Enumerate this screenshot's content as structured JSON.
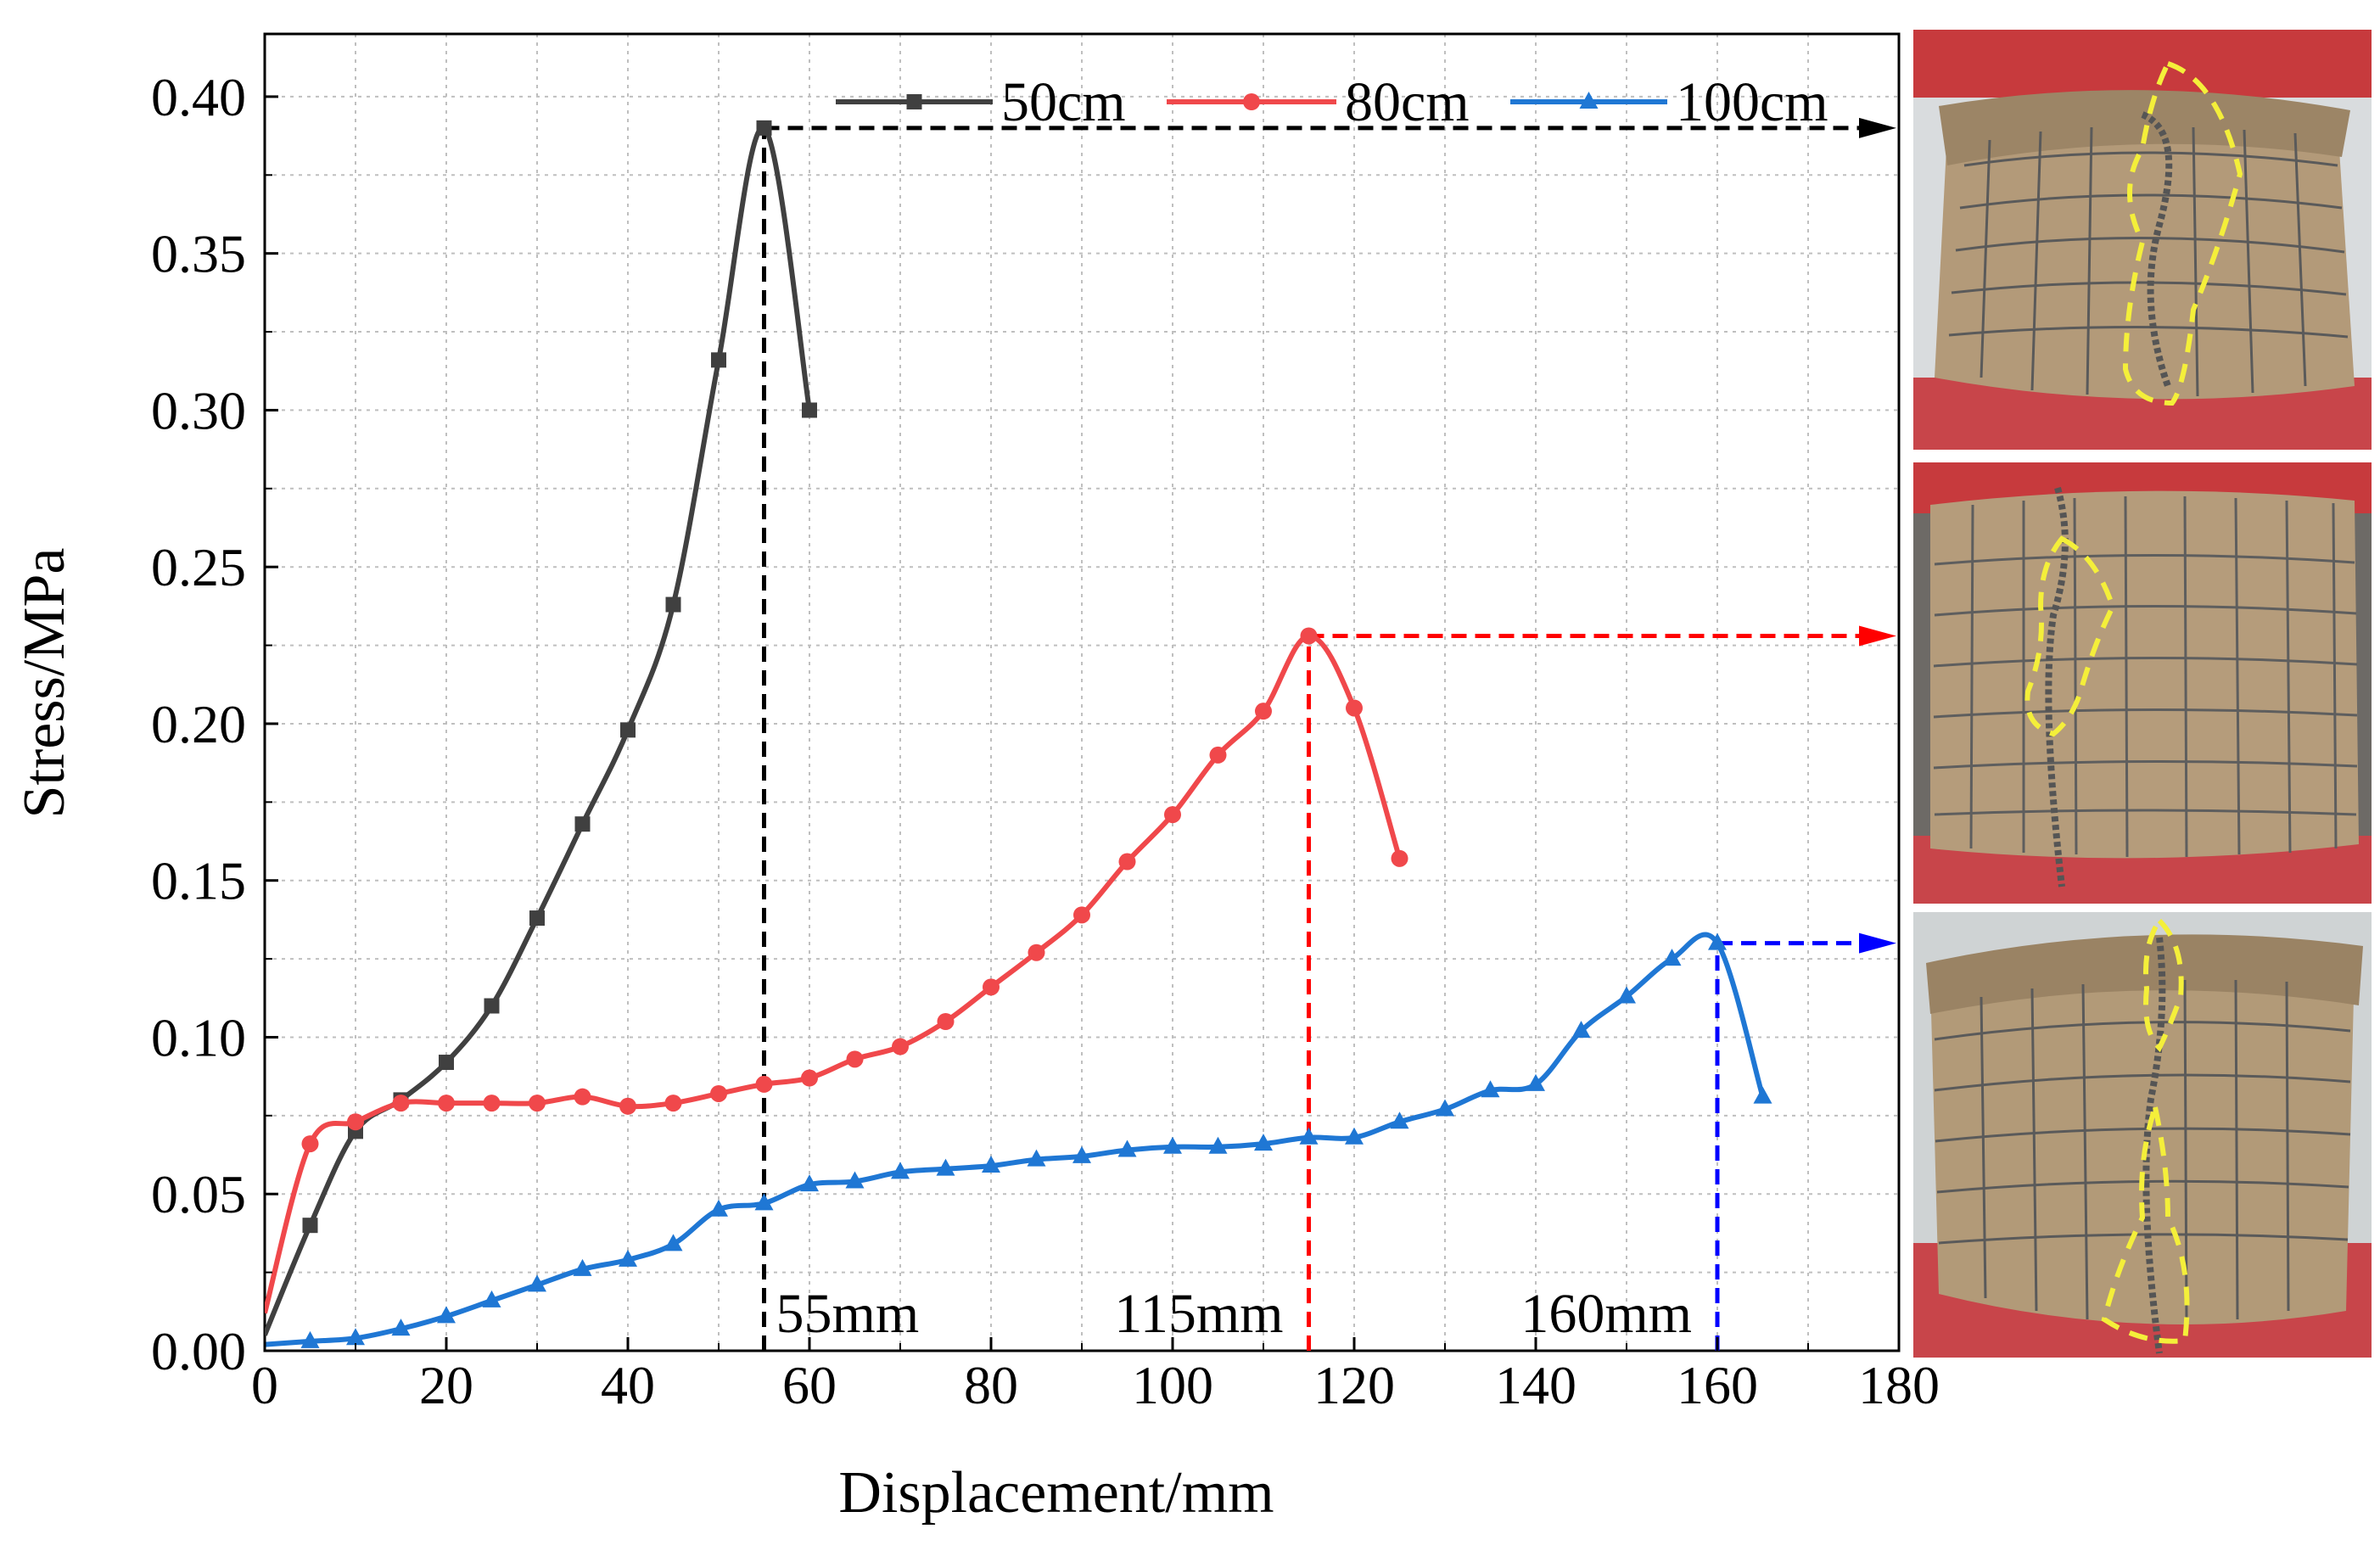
{
  "chart_data": {
    "type": "line",
    "title": "",
    "xlabel": "Displacement/mm",
    "ylabel": "Stress/MPa",
    "xlim": [
      0,
      180
    ],
    "ylim": [
      0,
      0.42
    ],
    "xticks": [
      0,
      20,
      40,
      60,
      80,
      100,
      120,
      140,
      160,
      180
    ],
    "yticks": [
      0.0,
      0.05,
      0.1,
      0.15,
      0.2,
      0.25,
      0.3,
      0.35,
      0.4
    ],
    "xtick_labels": [
      "0",
      "20",
      "40",
      "60",
      "80",
      "100",
      "120",
      "140",
      "160",
      "180"
    ],
    "ytick_labels": [
      "0.00",
      "0.05",
      "0.10",
      "0.15",
      "0.20",
      "0.25",
      "0.30",
      "0.35",
      "0.40"
    ],
    "grid": true,
    "legend_position": "top-right",
    "series": [
      {
        "name": "50cm",
        "color": "#404040",
        "marker": "square",
        "x": [
          0,
          5,
          10,
          15,
          20,
          25,
          30,
          35,
          40,
          45,
          50,
          55,
          60
        ],
        "y": [
          0.005,
          0.04,
          0.07,
          0.08,
          0.092,
          0.11,
          0.138,
          0.168,
          0.198,
          0.238,
          0.316,
          0.39,
          0.3
        ]
      },
      {
        "name": "80cm",
        "color": "#f0484b",
        "marker": "circle",
        "x": [
          0,
          5,
          10,
          15,
          20,
          25,
          30,
          35,
          40,
          45,
          50,
          55,
          60,
          65,
          70,
          75,
          80,
          85,
          90,
          95,
          100,
          105,
          110,
          115,
          120,
          125
        ],
        "y": [
          0.012,
          0.066,
          0.073,
          0.079,
          0.079,
          0.079,
          0.079,
          0.081,
          0.078,
          0.079,
          0.082,
          0.085,
          0.087,
          0.093,
          0.097,
          0.105,
          0.116,
          0.127,
          0.139,
          0.156,
          0.171,
          0.19,
          0.204,
          0.228,
          0.205,
          0.157
        ]
      },
      {
        "name": "100cm",
        "color": "#1f77d4",
        "marker": "triangle",
        "x": [
          0,
          5,
          10,
          15,
          20,
          25,
          30,
          35,
          40,
          45,
          50,
          55,
          60,
          65,
          70,
          75,
          80,
          85,
          90,
          95,
          100,
          105,
          110,
          115,
          120,
          125,
          130,
          135,
          140,
          145,
          150,
          155,
          160,
          165
        ],
        "y": [
          0.002,
          0.003,
          0.004,
          0.007,
          0.011,
          0.016,
          0.021,
          0.026,
          0.029,
          0.034,
          0.045,
          0.047,
          0.053,
          0.054,
          0.057,
          0.058,
          0.059,
          0.061,
          0.062,
          0.064,
          0.065,
          0.065,
          0.066,
          0.068,
          0.068,
          0.073,
          0.077,
          0.083,
          0.085,
          0.102,
          0.113,
          0.125,
          0.13,
          0.081
        ]
      }
    ],
    "annotations": [
      {
        "label": "55mm",
        "x": 55,
        "y": 0.39,
        "color": "#000000"
      },
      {
        "label": "115mm",
        "x": 115,
        "y": 0.228,
        "color": "#ff0000"
      },
      {
        "label": "160mm",
        "x": 160,
        "y": 0.13,
        "color": "#0000ff"
      }
    ]
  },
  "photos": [
    {
      "name": "photo-50cm-specimen",
      "dashed_outline_color": "#f4ef3a",
      "arrow_color": "#000000"
    },
    {
      "name": "photo-80cm-specimen",
      "dashed_outline_color": "#f4ef3a",
      "arrow_color": "#ff0000"
    },
    {
      "name": "photo-100cm-specimen",
      "dashed_outline_color": "#f4ef3a",
      "arrow_color": "#0000ff"
    }
  ]
}
